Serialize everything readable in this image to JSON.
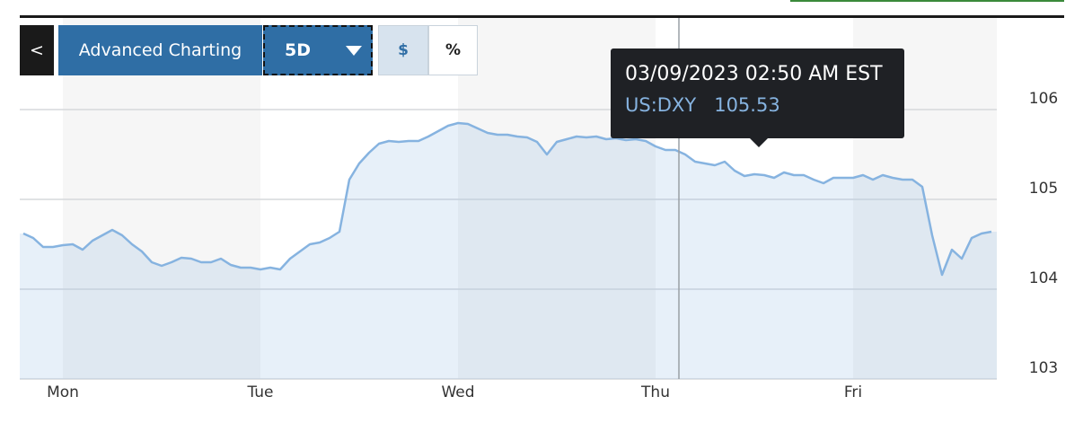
{
  "controls": {
    "back": "<",
    "advanced": "Advanced Charting",
    "range": "5D",
    "currency": "$",
    "percent": "%"
  },
  "tooltip": {
    "time": "03/09/2023 02:50 AM EST",
    "symbol": "US:DXY",
    "value": 105.53
  },
  "chart_data": {
    "type": "line",
    "categories": [
      null,
      null,
      null,
      null,
      "Mon",
      null,
      null,
      null,
      null,
      null,
      null,
      null,
      null,
      null,
      null,
      null,
      null,
      null,
      null,
      null,
      null,
      null,
      null,
      null,
      "Tue",
      null,
      null,
      null,
      null,
      null,
      null,
      null,
      null,
      null,
      null,
      null,
      null,
      null,
      null,
      null,
      null,
      null,
      null,
      null,
      "Wed",
      null,
      null,
      null,
      null,
      null,
      null,
      null,
      null,
      null,
      null,
      null,
      null,
      null,
      null,
      null,
      null,
      null,
      null,
      null,
      "Thu",
      null,
      null,
      null,
      null,
      null,
      null,
      null,
      null,
      null,
      null,
      null,
      null,
      null,
      null,
      null,
      null,
      null,
      null,
      null,
      "Fri",
      null,
      null,
      null,
      null,
      null,
      null,
      null,
      null,
      null,
      null,
      null,
      null,
      null,
      null
    ],
    "values": [
      104.62,
      104.57,
      104.47,
      104.47,
      104.49,
      104.5,
      104.44,
      104.54,
      104.6,
      104.66,
      104.6,
      104.5,
      104.42,
      104.3,
      104.26,
      104.3,
      104.35,
      104.34,
      104.3,
      104.3,
      104.34,
      104.27,
      104.24,
      104.24,
      104.22,
      104.24,
      104.22,
      104.34,
      104.42,
      104.5,
      104.52,
      104.57,
      104.64,
      105.22,
      105.4,
      105.52,
      105.62,
      105.65,
      105.64,
      105.65,
      105.65,
      105.7,
      105.76,
      105.82,
      105.85,
      105.84,
      105.79,
      105.74,
      105.72,
      105.72,
      105.7,
      105.69,
      105.64,
      105.5,
      105.64,
      105.67,
      105.7,
      105.69,
      105.7,
      105.67,
      105.68,
      105.66,
      105.67,
      105.65,
      105.59,
      105.55,
      105.55,
      105.5,
      105.42,
      105.4,
      105.38,
      105.42,
      105.32,
      105.26,
      105.28,
      105.27,
      105.24,
      105.3,
      105.27,
      105.27,
      105.22,
      105.18,
      105.24,
      105.24,
      105.24,
      105.27,
      105.22,
      105.27,
      105.24,
      105.22,
      105.22,
      105.14,
      104.6,
      104.16,
      104.44,
      104.34,
      104.57,
      104.62,
      104.64
    ],
    "color": "#86b3e0",
    "ylim": [
      103,
      107
    ],
    "yticks": [
      103,
      104,
      105,
      106
    ],
    "grid": true
  }
}
